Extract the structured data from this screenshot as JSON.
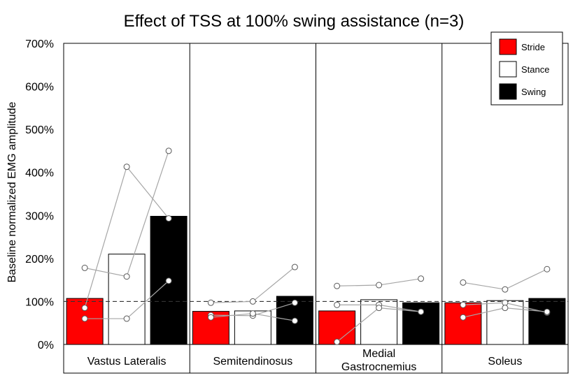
{
  "chart_data": {
    "type": "bar",
    "title": "Effect of TSS at 100% swing assistance (n=3)",
    "xlabel": "",
    "ylabel": "Baseline normalized EMG amplitude",
    "ylim": [
      0,
      700
    ],
    "yticks": [
      0,
      100,
      200,
      300,
      400,
      500,
      600,
      700
    ],
    "ytick_labels": [
      "0%",
      "100%",
      "200%",
      "300%",
      "400%",
      "500%",
      "600%",
      "700%"
    ],
    "reference_line": 100,
    "categories": [
      {
        "id": "vastus-lateralis",
        "lines": [
          "Vastus Lateralis"
        ]
      },
      {
        "id": "semitendinosus",
        "lines": [
          "Semitendinosus"
        ]
      },
      {
        "id": "medial-gastrocnemius",
        "lines": [
          "Medial",
          "Gastrocnemius"
        ]
      },
      {
        "id": "soleus",
        "lines": [
          "Soleus"
        ]
      }
    ],
    "series": [
      {
        "name": "Stride",
        "color": "#ff0000",
        "stroke": "#000000",
        "values": [
          107,
          77,
          78,
          97
        ]
      },
      {
        "name": "Stance",
        "color": "#ffffff",
        "stroke": "#000000",
        "values": [
          210,
          78,
          104,
          102
        ]
      },
      {
        "name": "Swing",
        "color": "#000000",
        "stroke": "#000000",
        "values": [
          298,
          112,
          97,
          107
        ]
      }
    ],
    "subjects": [
      {
        "values": [
          [
            178,
            158,
            450
          ],
          [
            97,
            100,
            180
          ],
          [
            136,
            138,
            153
          ],
          [
            144,
            128,
            175
          ]
        ]
      },
      {
        "values": [
          [
            85,
            413,
            293
          ],
          [
            68,
            67,
            97
          ],
          [
            92,
            92,
            76
          ],
          [
            92,
            97,
            74
          ]
        ]
      },
      {
        "values": [
          [
            60,
            60,
            148
          ],
          [
            63,
            72,
            55
          ],
          [
            6,
            85,
            76
          ],
          [
            63,
            85,
            76
          ]
        ]
      }
    ],
    "legend_position": "top-right"
  }
}
